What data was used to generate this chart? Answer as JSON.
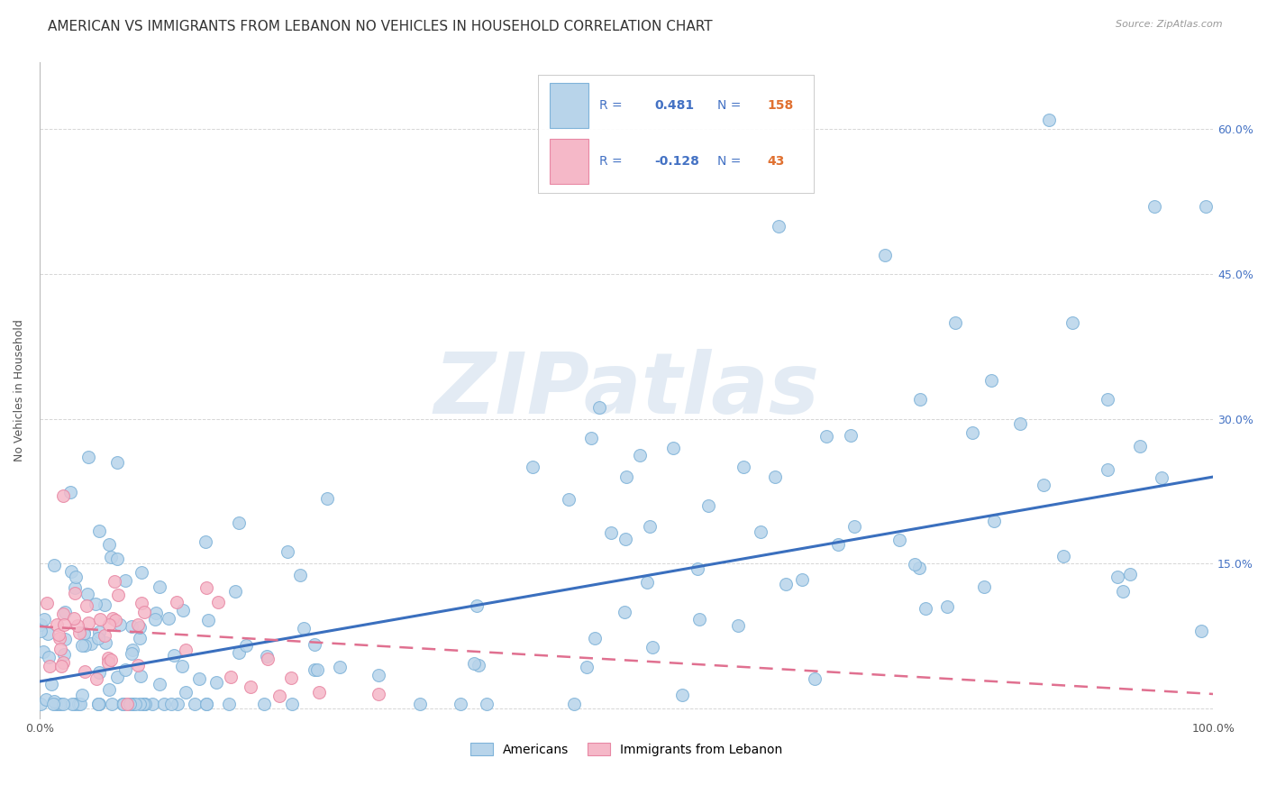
{
  "title": "AMERICAN VS IMMIGRANTS FROM LEBANON NO VEHICLES IN HOUSEHOLD CORRELATION CHART",
  "source": "Source: ZipAtlas.com",
  "ylabel": "No Vehicles in Household",
  "xlim": [
    0,
    1.0
  ],
  "ylim": [
    -0.01,
    0.67
  ],
  "y_ticks": [
    0.0,
    0.15,
    0.3,
    0.45,
    0.6
  ],
  "right_y_tick_labels": [
    "",
    "15.0%",
    "30.0%",
    "45.0%",
    "60.0%"
  ],
  "x_tick_labels": [
    "0.0%",
    "",
    "",
    "",
    "",
    "",
    "",
    "",
    "",
    "",
    "100.0%"
  ],
  "americans_face_color": "#b8d4ea",
  "americans_edge_color": "#7fb3d9",
  "lebanon_face_color": "#f5b8c8",
  "lebanon_edge_color": "#e888a4",
  "trend_blue_color": "#3a6fbe",
  "trend_pink_color": "#e07090",
  "R_american": 0.481,
  "N_american": 158,
  "R_lebanon": -0.128,
  "N_lebanon": 43,
  "legend_label_american": "Americans",
  "legend_label_lebanon": "Immigrants from Lebanon",
  "watermark": "ZIPatlas",
  "background_color": "#ffffff",
  "grid_color": "#cccccc",
  "title_fontsize": 11,
  "right_tick_color": "#4472c4",
  "legend_text_color": "#4472c4",
  "legend_N_color": "#e07030",
  "blue_line_start": 0.028,
  "blue_line_end": 0.24,
  "pink_line_start": 0.085,
  "pink_line_end": 0.015
}
